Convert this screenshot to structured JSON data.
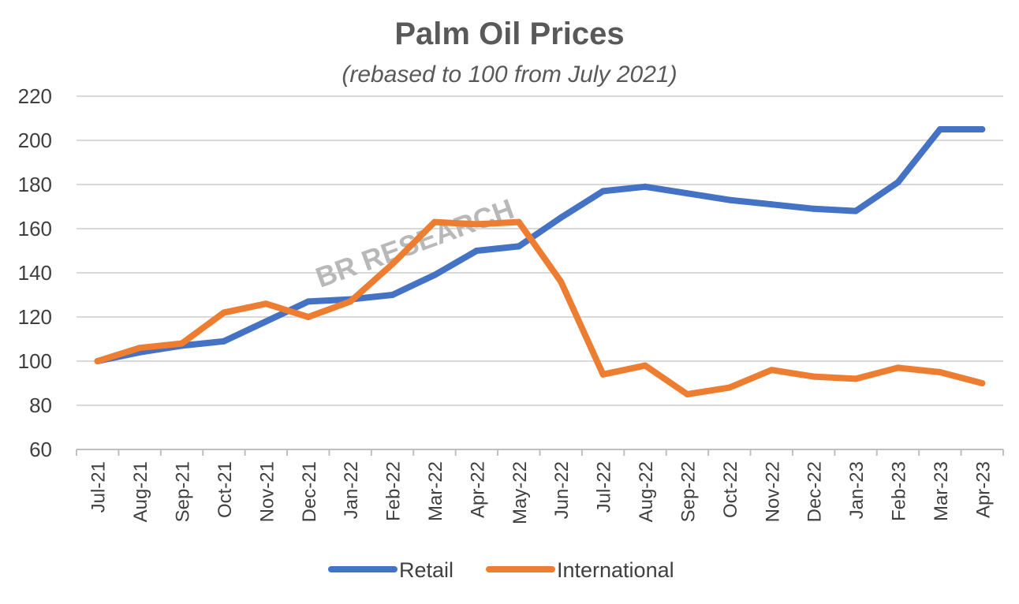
{
  "chart_data": {
    "type": "line",
    "title": "Palm Oil Prices",
    "subtitle": "(rebased to 100 from July 2021)",
    "watermark": "BR RESEARCH",
    "categories": [
      "Jul-21",
      "Aug-21",
      "Sep-21",
      "Oct-21",
      "Nov-21",
      "Dec-21",
      "Jan-22",
      "Feb-22",
      "Mar-22",
      "Apr-22",
      "May-22",
      "Jun-22",
      "Jul-22",
      "Aug-22",
      "Sep-22",
      "Oct-22",
      "Nov-22",
      "Dec-22",
      "Jan-23",
      "Feb-23",
      "Mar-23",
      "Apr-23"
    ],
    "series": [
      {
        "name": "Retail",
        "color": "#4472c4",
        "values": [
          100,
          104,
          107,
          109,
          118,
          127,
          128,
          130,
          139,
          150,
          152,
          165,
          177,
          179,
          176,
          173,
          171,
          169,
          168,
          181,
          205,
          205
        ]
      },
      {
        "name": "International",
        "color": "#ed7d31",
        "values": [
          100,
          106,
          108,
          122,
          126,
          120,
          127,
          144,
          163,
          162,
          163,
          136,
          94,
          98,
          85,
          88,
          96,
          93,
          92,
          97,
          95,
          90
        ]
      }
    ],
    "ylim": [
      60,
      220
    ],
    "yticks": [
      60,
      80,
      100,
      120,
      140,
      160,
      180,
      200,
      220
    ],
    "grid": true,
    "legend_position": "bottom"
  }
}
